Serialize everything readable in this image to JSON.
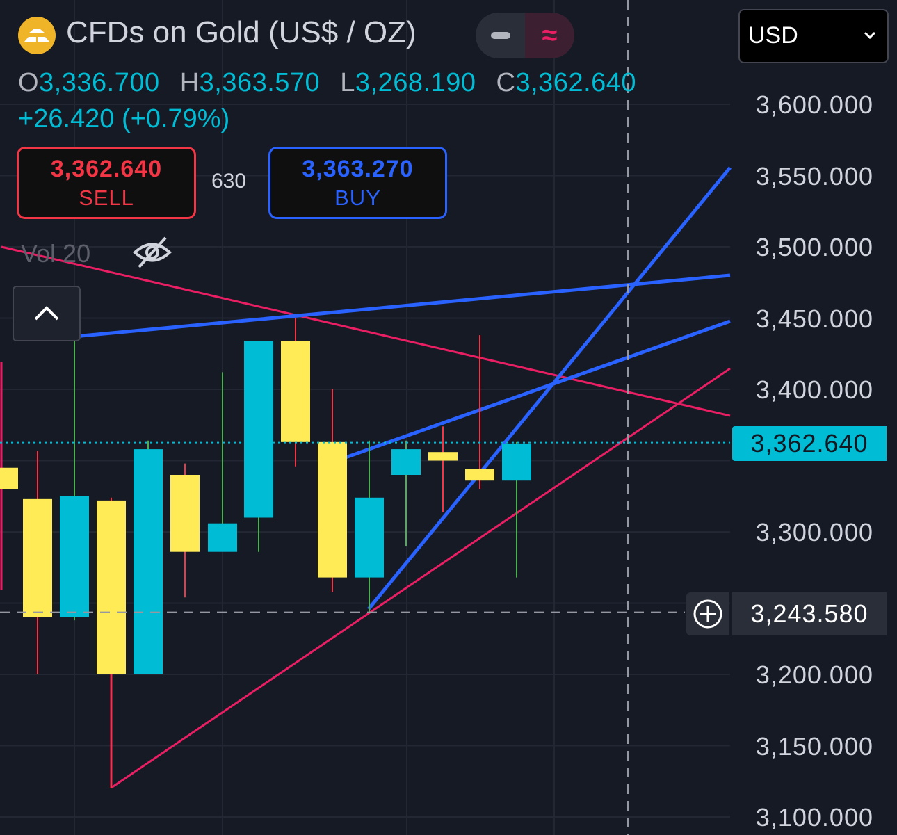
{
  "header": {
    "symbol_title": "CFDs on Gold (US$ / OZ)",
    "logo_icon": "gold-bars-icon",
    "ohlc": {
      "o_label": "O",
      "o_value": "3,336.700",
      "h_label": "H",
      "h_value": "3,363.570",
      "l_label": "L",
      "l_value": "3,268.190",
      "c_label": "C",
      "c_value": "3,362.640"
    },
    "change": "+26.420 (+0.79%)",
    "toggle_icons": [
      "minus-icon",
      "approx-icon"
    ]
  },
  "trade": {
    "sell_price": "3,362.640",
    "sell_label": "SELL",
    "spread": "630",
    "buy_price": "3,363.270",
    "buy_label": "BUY"
  },
  "indicator": {
    "volume_label": "Vol 20"
  },
  "currency_selector": {
    "value": "USD"
  },
  "price_axis": {
    "ticks": [
      "3,600.000",
      "3,550.000",
      "3,500.000",
      "3,450.000",
      "3,400.000",
      "3,300.000",
      "3,200.000",
      "3,150.000",
      "3,100.000"
    ],
    "last_price": "3,362.640",
    "crosshair_price": "3,243.580"
  },
  "colors": {
    "background": "#161a25",
    "up_candle": "#00bcd4",
    "down_candle": "#ffeb55",
    "wick_up": "#4caf50",
    "wick_down": "#f23645",
    "trendline_blue": "#2962ff",
    "trendline_pink": "#e91e63",
    "sell": "#f23645",
    "buy": "#2962ff"
  },
  "chart_data": {
    "type": "candlestick",
    "ylim": [
      3100,
      3650
    ],
    "candles": [
      {
        "open": 3345,
        "high": 3345,
        "low": 3330,
        "close": 3330
      },
      {
        "open": 3323,
        "high": 3357,
        "low": 3200,
        "close": 3240
      },
      {
        "open": 3240,
        "high": 3438,
        "low": 3238,
        "close": 3325
      },
      {
        "open": 3322,
        "high": 3324,
        "low": 3120,
        "close": 3200
      },
      {
        "open": 3200,
        "high": 3364,
        "low": 3200,
        "close": 3358
      },
      {
        "open": 3340,
        "high": 3348,
        "low": 3254,
        "close": 3286
      },
      {
        "open": 3286,
        "high": 3412,
        "low": 3290,
        "close": 3306
      },
      {
        "open": 3310,
        "high": 3432,
        "low": 3286,
        "close": 3434
      },
      {
        "open": 3434,
        "high": 3450,
        "low": 3346,
        "close": 3363
      },
      {
        "open": 3363,
        "high": 3400,
        "low": 3258,
        "close": 3268
      },
      {
        "open": 3268,
        "high": 3364,
        "low": 3243,
        "close": 3324
      },
      {
        "open": 3340,
        "high": 3364,
        "low": 3290,
        "close": 3358
      },
      {
        "open": 3356,
        "high": 3374,
        "low": 3314,
        "close": 3350
      },
      {
        "open": 3344,
        "high": 3438,
        "low": 3330,
        "close": 3336
      },
      {
        "open": 3336,
        "high": 3363,
        "low": 3268,
        "close": 3362
      }
    ],
    "last_price": 3362.64,
    "crosshair_price": 3243.58
  }
}
